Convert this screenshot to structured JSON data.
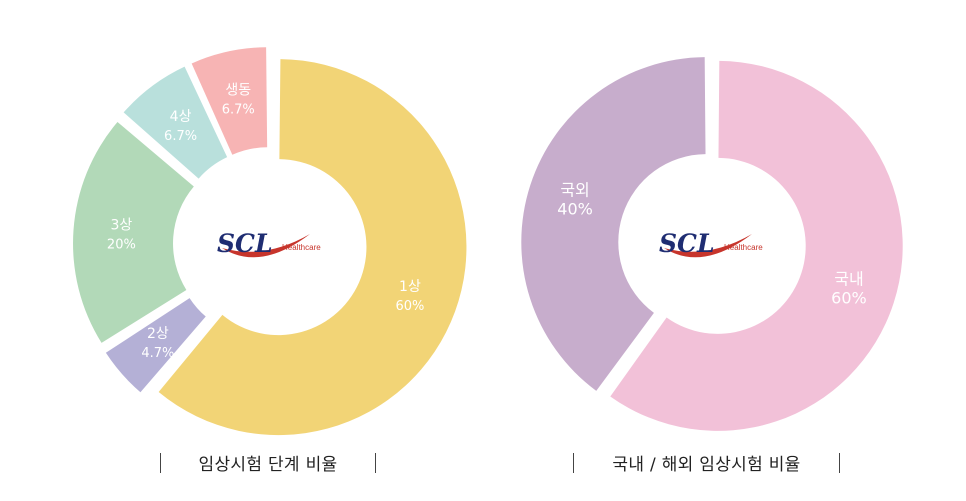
{
  "chart_data": [
    {
      "type": "pie",
      "title": "임상시험 단계 비율",
      "center_logo": {
        "brand": "SCL",
        "sub": "Healthcare"
      },
      "slices": [
        {
          "label": "1상",
          "value_label": "60%",
          "value": 60,
          "color": "#f2d476"
        },
        {
          "label": "2상",
          "value_label": "4.7%",
          "value": 4.7,
          "color": "#b4b0d6"
        },
        {
          "label": "3상",
          "value_label": "20%",
          "value": 20,
          "color": "#b2d9b8"
        },
        {
          "label": "4상",
          "value_label": "6.7%",
          "value": 6.7,
          "color": "#b9e0dc"
        },
        {
          "label": "생동",
          "value_label": "6.7%",
          "value": 6.7,
          "color": "#f7b4b4"
        }
      ]
    },
    {
      "type": "pie",
      "title": "국내 / 해외 임상시험 비율",
      "center_logo": {
        "brand": "SCL",
        "sub": "Healthcare"
      },
      "slices": [
        {
          "label": "국내",
          "value_label": "60%",
          "value": 60,
          "color": "#f2c1d8"
        },
        {
          "label": "국외",
          "value_label": "40%",
          "value": 40,
          "color": "#c7adcc"
        }
      ]
    }
  ]
}
